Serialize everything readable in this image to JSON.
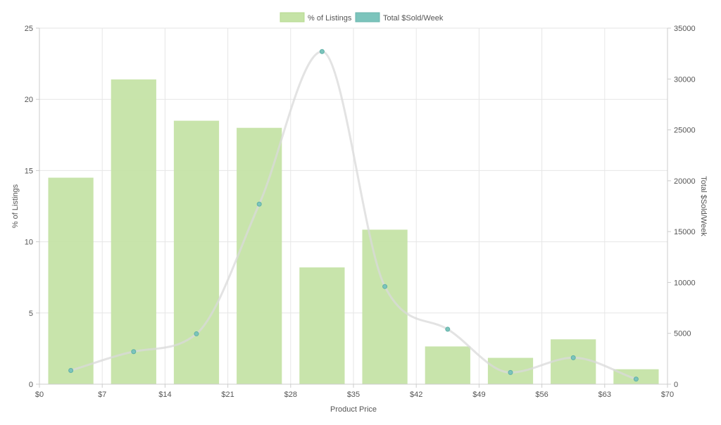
{
  "chart_data": {
    "type": "bar",
    "xlabel": "Product Price",
    "ylabel_left": "% of Listings",
    "ylabel_right": "Total $Sold/Week",
    "legend_placement": "top-center",
    "grid": true,
    "x_ticks": [
      "$0",
      "$7",
      "$14",
      "$21",
      "$28",
      "$35",
      "$42",
      "$49",
      "$56",
      "$63",
      "$70"
    ],
    "y_left_ticks": [
      "0",
      "5",
      "10",
      "15",
      "20",
      "25"
    ],
    "y_right_ticks": [
      "0",
      "5000",
      "10000",
      "15000",
      "20000",
      "25000",
      "30000",
      "35000"
    ],
    "y_left_lim": [
      0,
      25
    ],
    "y_right_lim": [
      0,
      35000
    ],
    "x_lim": [
      0,
      70
    ],
    "bins": [
      {
        "start": 0,
        "end": 7,
        "listings_pct": 14.5,
        "sold_per_week": 1350
      },
      {
        "start": 7,
        "end": 14,
        "listings_pct": 21.4,
        "sold_per_week": 3200
      },
      {
        "start": 14,
        "end": 21,
        "listings_pct": 18.5,
        "sold_per_week": 4950
      },
      {
        "start": 21,
        "end": 28,
        "listings_pct": 18.0,
        "sold_per_week": 17700
      },
      {
        "start": 28,
        "end": 35,
        "listings_pct": 8.2,
        "sold_per_week": 32700
      },
      {
        "start": 35,
        "end": 42,
        "listings_pct": 10.85,
        "sold_per_week": 9600
      },
      {
        "start": 42,
        "end": 49,
        "listings_pct": 2.65,
        "sold_per_week": 5400
      },
      {
        "start": 49,
        "end": 56,
        "listings_pct": 1.85,
        "sold_per_week": 1150
      },
      {
        "start": 56,
        "end": 63,
        "listings_pct": 3.15,
        "sold_per_week": 2600
      },
      {
        "start": 63,
        "end": 70,
        "listings_pct": 1.05,
        "sold_per_week": 500
      }
    ],
    "series": [
      {
        "name": "% of Listings",
        "type": "bar",
        "axis": "left",
        "color": "#c5e3a6"
      },
      {
        "name": "Total $Sold/Week",
        "type": "line",
        "axis": "right",
        "color": "#7cc4bc",
        "line_color": "#d9d9d9"
      }
    ]
  }
}
